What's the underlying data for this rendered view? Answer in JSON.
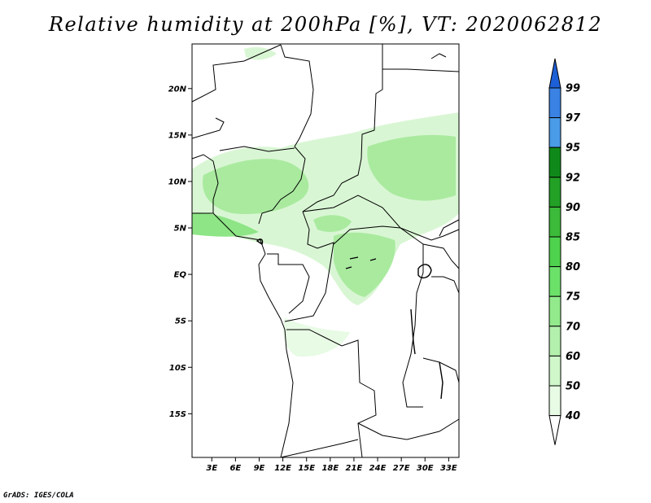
{
  "title": "Relative humidity at 200hPa [%], VT: 2020062812",
  "footer": "GrADS: IGES/COLA",
  "map": {
    "lat_labels": [
      "20N",
      "15N",
      "10N",
      "5N",
      "EQ",
      "5S",
      "10S",
      "15S"
    ],
    "lat_values": [
      20,
      15,
      10,
      5,
      0,
      -5,
      -10,
      -15
    ],
    "lon_labels": [
      "3E",
      "6E",
      "9E",
      "12E",
      "15E",
      "18E",
      "21E",
      "24E",
      "27E",
      "30E",
      "33E"
    ],
    "lon_values": [
      3,
      6,
      9,
      12,
      15,
      18,
      21,
      24,
      27,
      30,
      33
    ],
    "lon_range": [
      0.5,
      34.3
    ],
    "lat_range": [
      -19.7,
      24.8
    ]
  },
  "colorbar": {
    "levels": [
      "99",
      "97",
      "95",
      "92",
      "90",
      "85",
      "80",
      "75",
      "70",
      "60",
      "50",
      "40"
    ],
    "colors": [
      "#1d5fd6",
      "#3a82e4",
      "#4a9be8",
      "#0f8a1a",
      "#22a126",
      "#3cba3a",
      "#4fd24d",
      "#6ce16a",
      "#92ea8c",
      "#b3f0ad",
      "#cff7ca",
      "#e8fbe5",
      "#ffffff"
    ]
  }
}
